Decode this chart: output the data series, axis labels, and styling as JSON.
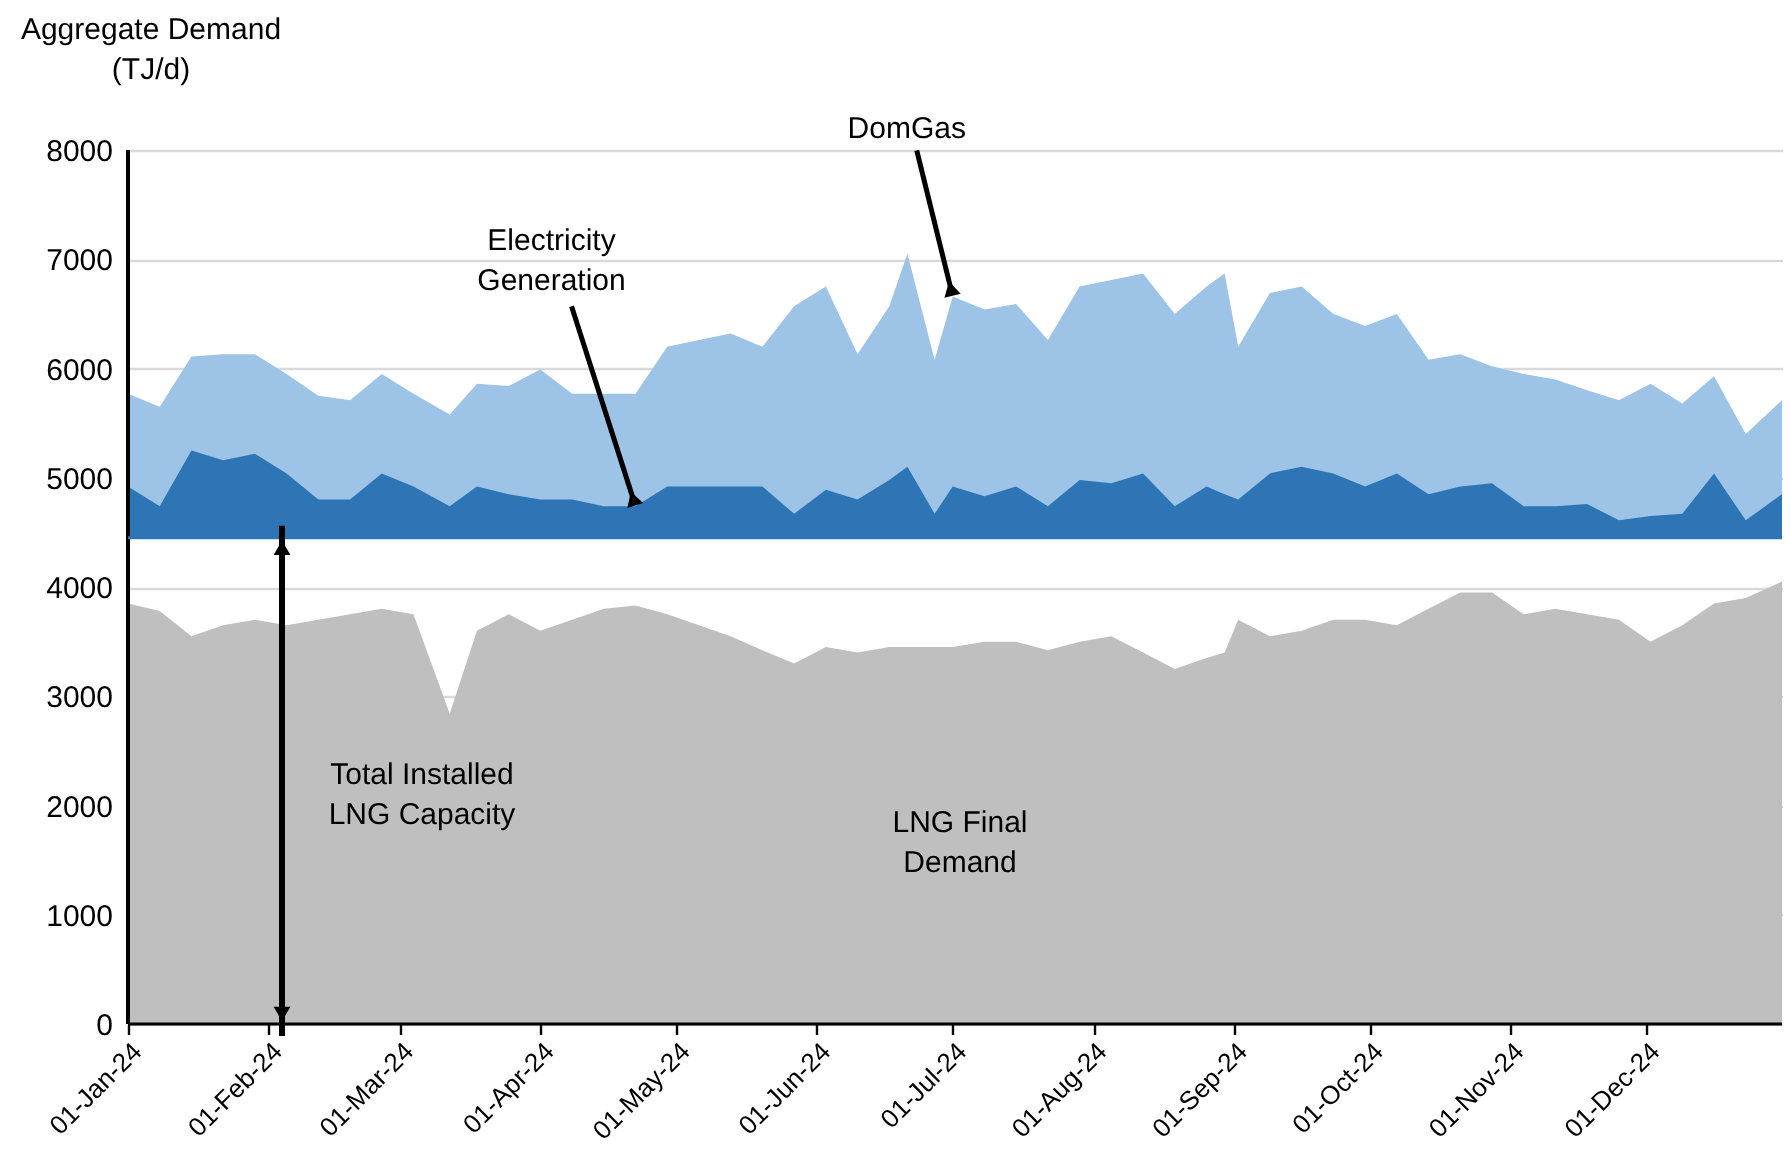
{
  "chart_data": {
    "type": "area",
    "ylabel": "Aggregate Demand (TJ/d)",
    "x": [
      "2024-01-01",
      "2024-01-08",
      "2024-01-15",
      "2024-01-22",
      "2024-01-29",
      "2024-02-05",
      "2024-02-12",
      "2024-02-19",
      "2024-02-26",
      "2024-03-04",
      "2024-03-12",
      "2024-03-18",
      "2024-03-25",
      "2024-04-01",
      "2024-04-08",
      "2024-04-15",
      "2024-04-22",
      "2024-04-29",
      "2024-05-06",
      "2024-05-13",
      "2024-05-20",
      "2024-05-27",
      "2024-06-03",
      "2024-06-10",
      "2024-06-17",
      "2024-06-21",
      "2024-06-27",
      "2024-07-01",
      "2024-07-08",
      "2024-07-15",
      "2024-07-22",
      "2024-07-29",
      "2024-08-05",
      "2024-08-12",
      "2024-08-19",
      "2024-08-26",
      "2024-08-30",
      "2024-09-02",
      "2024-09-09",
      "2024-09-16",
      "2024-09-23",
      "2024-09-30",
      "2024-10-07",
      "2024-10-14",
      "2024-10-21",
      "2024-10-28",
      "2024-11-04",
      "2024-11-11",
      "2024-11-18",
      "2024-11-25",
      "2024-12-02",
      "2024-12-09",
      "2024-12-16",
      "2024-12-23",
      "2024-12-31"
    ],
    "series": [
      {
        "color": "#bfbfbf",
        "values": [
          3850,
          3780,
          3550,
          3650,
          3700,
          3650,
          3700,
          3750,
          3800,
          3750,
          2840,
          3600,
          3750,
          3600,
          3700,
          3800,
          3830,
          3750,
          3650,
          3550,
          3420,
          3300,
          3450,
          3400,
          3450,
          3450,
          3450,
          3450,
          3500,
          3500,
          3420,
          3500,
          3550,
          3400,
          3250,
          3350,
          3400,
          3700,
          3550,
          3600,
          3700,
          3700,
          3650,
          3800,
          3950,
          3950,
          3750,
          3800,
          3750,
          3700,
          3500,
          3650,
          3850,
          3900,
          4050
        ]
      },
      {
        "color": "#2e75b6",
        "values": [
          4920,
          4740,
          5250,
          5160,
          5220,
          5040,
          4800,
          4800,
          5040,
          4920,
          4740,
          4920,
          4850,
          4800,
          4800,
          4740,
          4740,
          4920,
          4920,
          4920,
          4920,
          4670,
          4890,
          4800,
          4980,
          5100,
          4670,
          4920,
          4830,
          4920,
          4740,
          4980,
          4950,
          5040,
          4740,
          4920,
          4850,
          4800,
          5040,
          5100,
          5040,
          4920,
          5040,
          4850,
          4920,
          4950,
          4740,
          4740,
          4760,
          4610,
          4650,
          4670,
          5040,
          4610,
          4850
        ]
      },
      {
        "color": "#9dc3e6",
        "values": [
          5770,
          5650,
          6110,
          6130,
          6130,
          5950,
          5750,
          5710,
          5950,
          5770,
          5580,
          5860,
          5840,
          5990,
          5770,
          5770,
          5770,
          6200,
          6260,
          6320,
          6200,
          6570,
          6750,
          6130,
          6570,
          7050,
          6080,
          6660,
          6540,
          6590,
          6260,
          6750,
          6810,
          6870,
          6500,
          6750,
          6870,
          6200,
          6690,
          6750,
          6500,
          6390,
          6500,
          6080,
          6130,
          6020,
          5950,
          5900,
          5800,
          5710,
          5860,
          5680,
          5930,
          5400,
          5710
        ]
      }
    ],
    "xlim": [
      "2024-01-01",
      "2024-12-31"
    ],
    "xticks": [
      {
        "value": "2024-01-01",
        "label": "01-Jan-24"
      },
      {
        "value": "2024-02-01",
        "label": "01-Feb-24"
      },
      {
        "value": "2024-03-01",
        "label": "01-Mar-24"
      },
      {
        "value": "2024-04-01",
        "label": "01-Apr-24"
      },
      {
        "value": "2024-05-01",
        "label": "01-May-24"
      },
      {
        "value": "2024-06-01",
        "label": "01-Jun-24"
      },
      {
        "value": "2024-07-01",
        "label": "01-Jul-24"
      },
      {
        "value": "2024-08-01",
        "label": "01-Aug-24"
      },
      {
        "value": "2024-09-01",
        "label": "01-Sep-24"
      },
      {
        "value": "2024-10-01",
        "label": "01-Oct-24"
      },
      {
        "value": "2024-11-01",
        "label": "01-Nov-24"
      },
      {
        "value": "2024-12-01",
        "label": "01-Dec-24"
      }
    ],
    "ylim": [
      0,
      8000
    ],
    "yticks": [
      0,
      1000,
      2000,
      3000,
      4000,
      5000,
      6000,
      7000,
      8000
    ],
    "grid": "y",
    "ref_lines": [
      {
        "axis": "y",
        "value": 4450,
        "color": "#2e75b6"
      }
    ],
    "annotations": [
      {
        "text": "DomGas",
        "x": "2024-07-01",
        "y": 6660
      },
      {
        "text": "Electricity Generation",
        "x": "2024-04-22",
        "y": 4740
      },
      "Total Installed LNG Capacity",
      "LNG Final Demand"
    ]
  }
}
